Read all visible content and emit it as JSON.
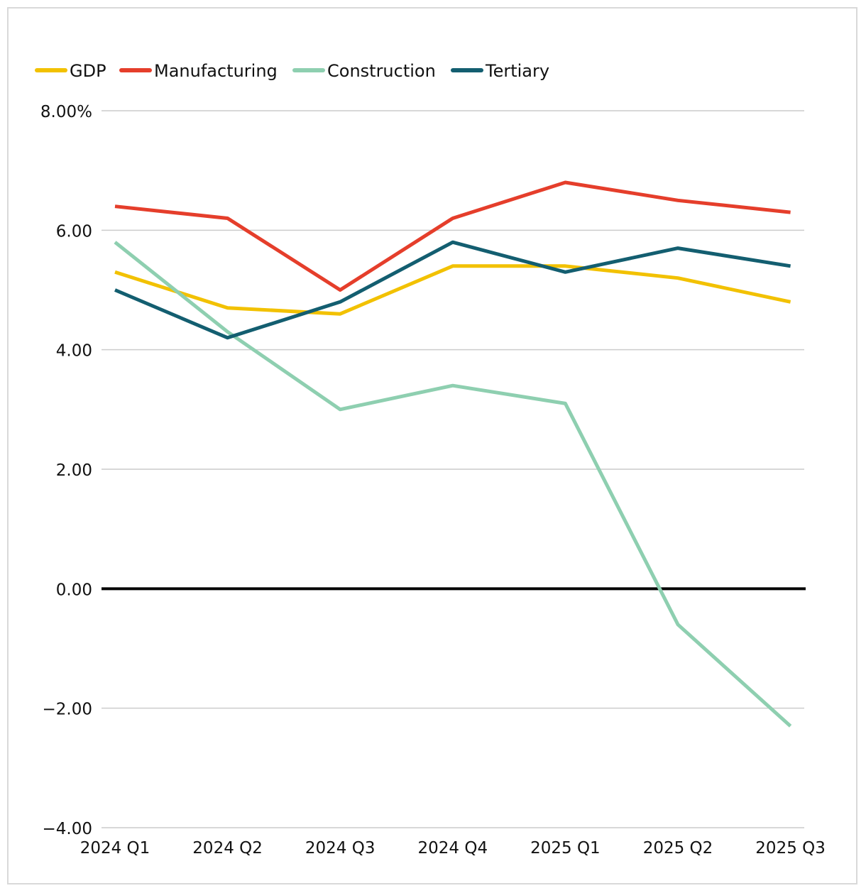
{
  "chart_data": {
    "type": "line",
    "title": "",
    "xlabel": "",
    "ylabel": "",
    "categories": [
      "2024 Q1",
      "2024 Q2",
      "2024 Q3",
      "2024 Q4",
      "2025 Q1",
      "2025 Q2",
      "2025 Q3"
    ],
    "ylim": [
      -4,
      8
    ],
    "y_ticks": [
      8,
      6,
      4,
      2,
      0,
      -2,
      -4
    ],
    "y_tick_labels": [
      "8.00%",
      "6.00",
      "4.00",
      "2.00",
      "0.00",
      "−2.00",
      "−4.00"
    ],
    "grid": true,
    "legend_position": "top-left",
    "series": [
      {
        "name": "GDP",
        "color": "#f2c100",
        "values": [
          5.3,
          4.7,
          4.6,
          5.4,
          5.4,
          5.2,
          4.8
        ]
      },
      {
        "name": "Manufacturing",
        "color": "#e53e2b",
        "values": [
          6.4,
          6.2,
          5.0,
          6.2,
          6.8,
          6.5,
          6.3
        ]
      },
      {
        "name": "Construction",
        "color": "#8ecfb0",
        "values": [
          5.8,
          4.3,
          3.0,
          3.4,
          3.1,
          -0.6,
          -2.3
        ]
      },
      {
        "name": "Tertiary",
        "color": "#135e70",
        "values": [
          5.0,
          4.2,
          4.8,
          5.8,
          5.3,
          5.7,
          5.4
        ]
      }
    ]
  }
}
